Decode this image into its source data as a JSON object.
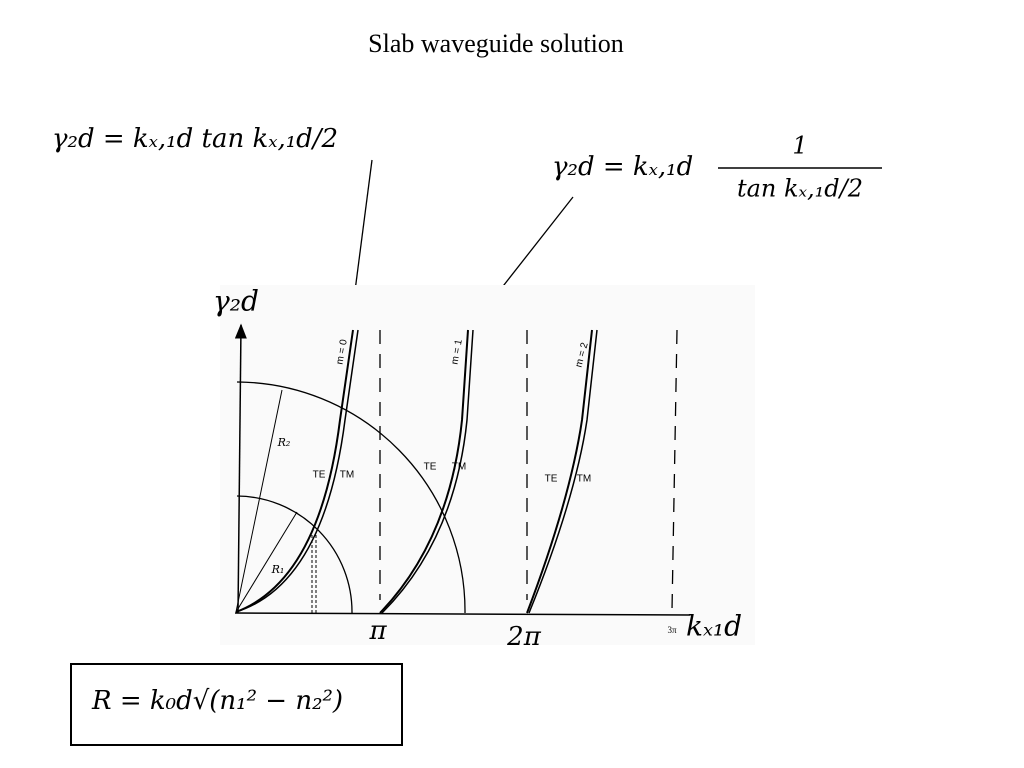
{
  "title": "Slab waveguide solution",
  "equation_even": "γ₂d = kₓ,₁d tan kₓ,₁d/2",
  "equation_odd": {
    "left": "γ₂d = kₓ,₁d",
    "numerator": "1",
    "denominator": "tan kₓ,₁d/2"
  },
  "axes": {
    "y_label": "γ₂d",
    "x_label": "kₓ₁d",
    "x_marks": [
      "π",
      "2π",
      "3π"
    ]
  },
  "curves": [
    {
      "label": "m = 0",
      "te": "TE",
      "tm": "TM"
    },
    {
      "label": "m = 1",
      "te": "TE",
      "tm": "TM"
    },
    {
      "label": "m = 2",
      "te": "TE",
      "tm": "TM"
    }
  ],
  "radii": [
    "R₁",
    "R₂"
  ],
  "box": "R = k₀d√(n₁² − n₂²)"
}
